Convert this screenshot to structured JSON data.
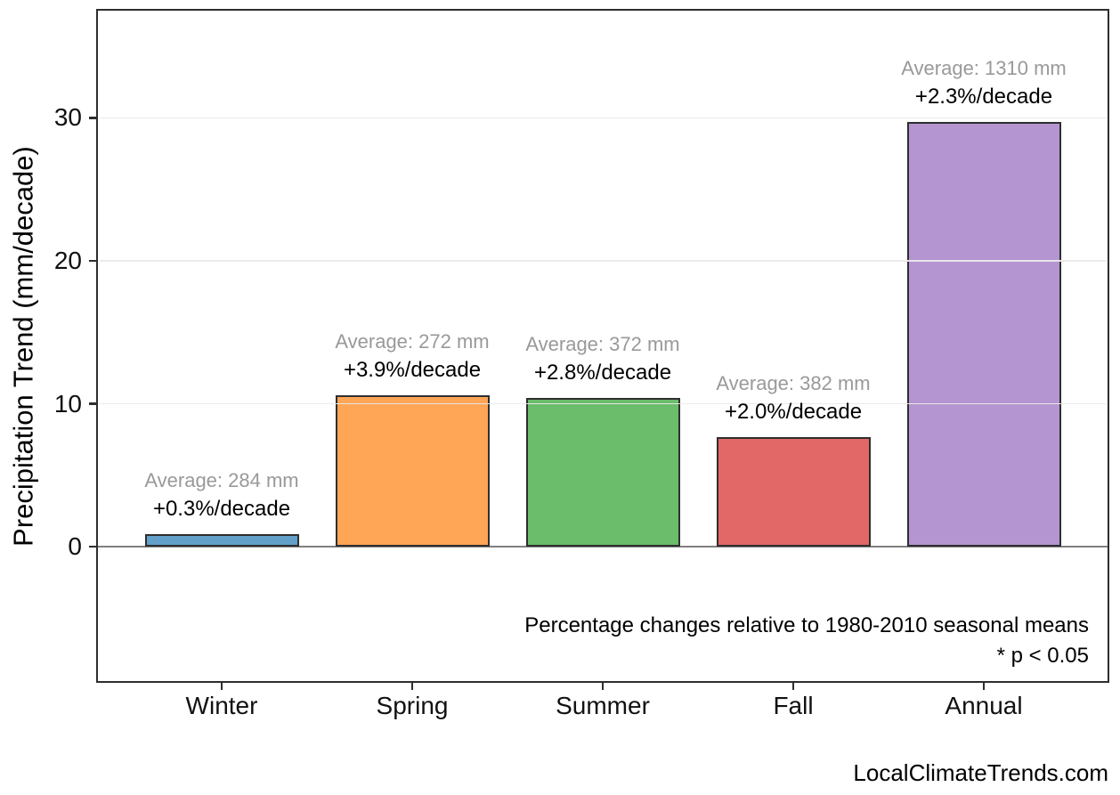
{
  "chart_data": {
    "type": "bar",
    "title": "",
    "xlabel": "",
    "ylabel": "Precipitation Trend (mm/decade)",
    "categories": [
      "Winter",
      "Spring",
      "Summer",
      "Fall",
      "Annual"
    ],
    "values": [
      0.85,
      10.61,
      10.42,
      7.64,
      29.7
    ],
    "values_unit": "mm/decade",
    "averages_mm": [
      284,
      272,
      372,
      382,
      1310
    ],
    "trend_pct_per_decade": [
      0.3,
      3.9,
      2.8,
      2.0,
      2.3
    ],
    "bar_labels": [
      {
        "average": "Average: 284 mm",
        "trend": "+0.3%/decade"
      },
      {
        "average": "Average: 272 mm",
        "trend": "+3.9%/decade"
      },
      {
        "average": "Average: 372 mm",
        "trend": "+2.8%/decade"
      },
      {
        "average": "Average: 382 mm",
        "trend": "+2.0%/decade"
      },
      {
        "average": "Average: 1310 mm",
        "trend": "+2.3%/decade"
      }
    ],
    "yticks": [
      0,
      10,
      20,
      30
    ],
    "ylim": [
      -9.4,
      37.5
    ],
    "grid": "horizontal",
    "legend": "none",
    "bar_colors": [
      "#62A0CA",
      "#FFA556",
      "#6BBC6B",
      "#E26868",
      "#B495D1"
    ],
    "bar_edge_color": "#2e2e2e",
    "zero_line_color": "#808080",
    "avg_label_color": "#999999",
    "annotations": [
      "Percentage changes relative to 1980-2010 seasonal means",
      "* p < 0.05"
    ]
  },
  "footer": {
    "text": "LocalClimateTrends.com"
  }
}
